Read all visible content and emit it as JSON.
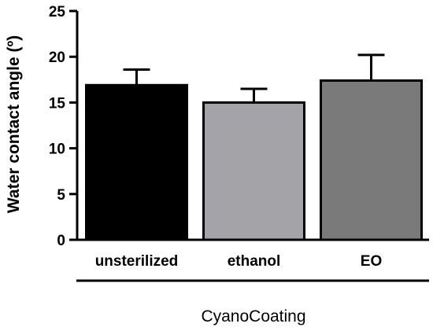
{
  "chart_data": {
    "type": "bar",
    "categories": [
      "unsterilized",
      "ethanol",
      "EO"
    ],
    "values": [
      16.9,
      15.0,
      17.4
    ],
    "errors": [
      1.7,
      1.5,
      2.8
    ],
    "colors": [
      "#000000",
      "#a3a3a8",
      "#7a7a7a"
    ],
    "ylabel": "Water contact angle (º)",
    "xlabel": "CyanoCoating",
    "ylim": [
      0,
      25
    ],
    "yticks": [
      0,
      5,
      10,
      15,
      20,
      25
    ],
    "grid": false
  }
}
